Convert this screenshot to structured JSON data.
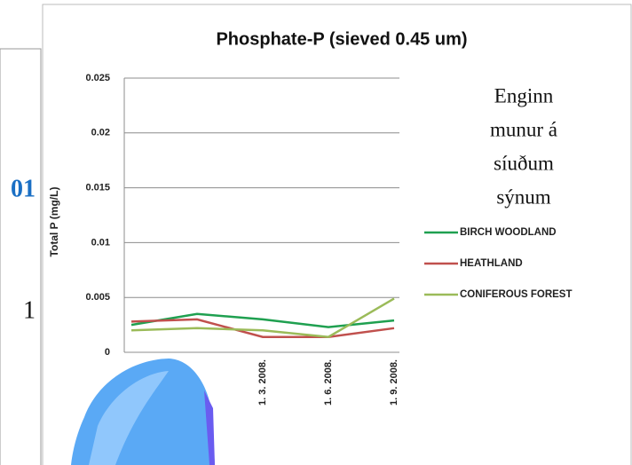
{
  "background_text": [
    "01",
    "1"
  ],
  "chart_data": {
    "type": "line",
    "title": "Phosphate-P (sieved 0.45 um)",
    "y_label": "Total P (mg/L)",
    "annotation": [
      "Enginn",
      "munur á",
      "síuðum",
      "sýnum"
    ],
    "categories": [
      null,
      null,
      "1. 3. 2008.",
      "1. 6. 2008.",
      "1. 9. 2008."
    ],
    "series": [
      {
        "name": "BIRCH WOODLAND",
        "color": "#1fa050",
        "values": [
          0.0025,
          0.0035,
          0.003,
          0.0023,
          0.0029
        ]
      },
      {
        "name": "HEATHLAND",
        "color": "#c0504d",
        "values": [
          0.0028,
          0.003,
          0.0014,
          0.0014,
          0.0022
        ]
      },
      {
        "name": "CONIFEROUS FOREST",
        "color": "#9bbb59",
        "values": [
          0.002,
          0.0022,
          0.002,
          0.0014,
          0.0049
        ]
      }
    ],
    "ylim": [
      0,
      0.025
    ],
    "yticks": [
      0,
      0.005,
      0.01,
      0.015,
      0.02,
      0.025
    ],
    "grid": true,
    "legend": "right"
  }
}
